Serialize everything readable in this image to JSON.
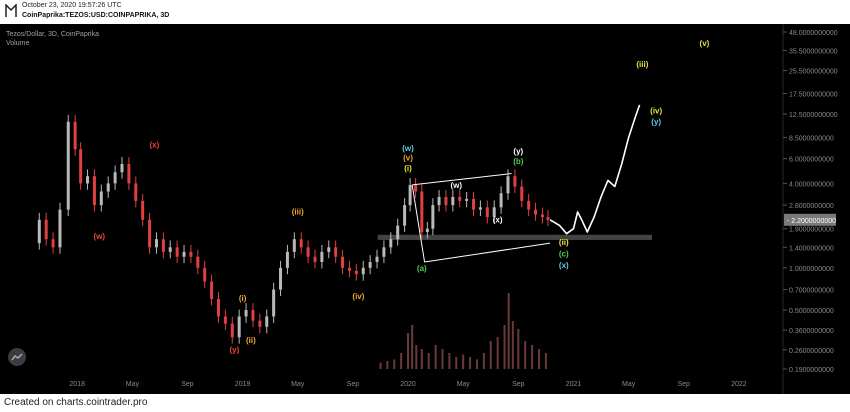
{
  "header": {
    "timestamp": "October 23, 2020 19:57:26 UTC",
    "symbol": "CoinPaprika:TEZOS:USD:COINPAPRIKA, 3D"
  },
  "legend": {
    "title": "Tezos/Dollar, 3D, CoinPaprika",
    "volume": "Volume"
  },
  "footer": {
    "text": "Created on charts.cointrader.pro"
  },
  "colors": {
    "background": "#000000",
    "up": "#b9b9b9",
    "down": "#e04040",
    "volume": "#3a2a2a",
    "axis_text": "#8a8a8a",
    "price_label": "#7a7a7a",
    "projection": "#ffffff",
    "wave_red": "#e8473a",
    "wave_orange": "#f0a830",
    "wave_green": "#4ccf4c",
    "wave_white": "#ffffff",
    "wave_cyan": "#5ac8f0",
    "wave_yellow": "#e8e040"
  },
  "chart_data": {
    "type": "candlestick",
    "scale": "log",
    "y_ticks": [
      "48.0000000000",
      "35.5000000000",
      "25.5000000000",
      "17.5000000000",
      "12.5000000000",
      "8.5000000000",
      "6.0000000000",
      "4.0000000000",
      "2.8000000000",
      "1.9000000000",
      "1.4000000000",
      "1.0000000000",
      "0.7000000000",
      "0.5000000000",
      "0.3600000000",
      "0.2600000000",
      "0.1900000000"
    ],
    "y_tick_values": [
      48,
      35.5,
      25.5,
      17.5,
      12.5,
      8.5,
      6.0,
      4.0,
      2.8,
      1.9,
      1.4,
      1.0,
      0.7,
      0.5,
      0.36,
      0.26,
      0.19
    ],
    "current_price": "2.2000000000",
    "current_price_value": 2.2,
    "x_ticks": [
      {
        "label": "2018",
        "t": 0.0
      },
      {
        "label": "May",
        "t": 4.0
      },
      {
        "label": "Sep",
        "t": 8.0
      },
      {
        "label": "2019",
        "t": 12.0
      },
      {
        "label": "May",
        "t": 16.0
      },
      {
        "label": "Sep",
        "t": 20.0
      },
      {
        "label": "2020",
        "t": 24.0
      },
      {
        "label": "May",
        "t": 28.0
      },
      {
        "label": "Sep",
        "t": 32.0
      },
      {
        "label": "2021",
        "t": 36.0
      },
      {
        "label": "May",
        "t": 40.0
      },
      {
        "label": "Sep",
        "t": 44.0
      },
      {
        "label": "2022",
        "t": 48.0
      }
    ],
    "price_path": [
      [
        -3.0,
        1.5
      ],
      [
        -2.5,
        2.2
      ],
      [
        -2.0,
        1.6
      ],
      [
        -1.5,
        1.4
      ],
      [
        -1.0,
        2.6
      ],
      [
        -0.3,
        11.0
      ],
      [
        0.0,
        7.0
      ],
      [
        0.5,
        4.0
      ],
      [
        1.0,
        4.5
      ],
      [
        1.5,
        2.8
      ],
      [
        2.0,
        3.5
      ],
      [
        2.5,
        4.0
      ],
      [
        3.0,
        4.8
      ],
      [
        3.5,
        5.5
      ],
      [
        4.0,
        4.0
      ],
      [
        4.5,
        3.0
      ],
      [
        5.0,
        2.2
      ],
      [
        5.5,
        1.4
      ],
      [
        6.0,
        1.6
      ],
      [
        6.5,
        1.3
      ],
      [
        7.0,
        1.4
      ],
      [
        7.5,
        1.2
      ],
      [
        8.0,
        1.3
      ],
      [
        8.5,
        1.2
      ],
      [
        9.0,
        1.0
      ],
      [
        9.5,
        0.8
      ],
      [
        10.0,
        0.6
      ],
      [
        10.5,
        0.45
      ],
      [
        11.0,
        0.4
      ],
      [
        11.5,
        0.32
      ],
      [
        12.0,
        0.45
      ],
      [
        12.5,
        0.5
      ],
      [
        13.0,
        0.42
      ],
      [
        13.5,
        0.38
      ],
      [
        14.0,
        0.45
      ],
      [
        14.5,
        0.7
      ],
      [
        15.0,
        1.0
      ],
      [
        15.5,
        1.3
      ],
      [
        16.0,
        1.6
      ],
      [
        16.5,
        1.4
      ],
      [
        17.0,
        1.2
      ],
      [
        17.5,
        1.1
      ],
      [
        18.0,
        1.3
      ],
      [
        18.5,
        1.4
      ],
      [
        19.0,
        1.2
      ],
      [
        19.5,
        1.0
      ],
      [
        20.0,
        0.95
      ],
      [
        20.5,
        0.9
      ],
      [
        21.0,
        1.0
      ],
      [
        21.5,
        1.1
      ],
      [
        22.0,
        1.2
      ],
      [
        22.5,
        1.4
      ],
      [
        23.0,
        1.6
      ],
      [
        23.5,
        2.0
      ],
      [
        24.0,
        2.8
      ],
      [
        24.3,
        3.9
      ],
      [
        24.8,
        3.5
      ],
      [
        25.2,
        1.8
      ],
      [
        25.6,
        1.9
      ],
      [
        26.0,
        2.8
      ],
      [
        26.5,
        3.2
      ],
      [
        27.0,
        2.8
      ],
      [
        27.5,
        3.2
      ],
      [
        28.0,
        3.0
      ],
      [
        28.5,
        3.1
      ],
      [
        29.0,
        2.6
      ],
      [
        29.5,
        2.7
      ],
      [
        30.0,
        2.3
      ],
      [
        30.5,
        2.7
      ],
      [
        31.0,
        3.4
      ],
      [
        31.5,
        4.5
      ],
      [
        32.0,
        3.8
      ],
      [
        32.5,
        3.0
      ],
      [
        33.0,
        2.6
      ],
      [
        33.5,
        2.4
      ],
      [
        34.0,
        2.3
      ],
      [
        34.3,
        2.2
      ]
    ],
    "projection_path": [
      [
        34.3,
        2.2
      ],
      [
        35.0,
        2.0
      ],
      [
        35.5,
        1.75
      ],
      [
        36.0,
        1.9
      ],
      [
        36.3,
        2.5
      ],
      [
        36.6,
        2.2
      ],
      [
        37.0,
        1.8
      ],
      [
        37.5,
        2.3
      ],
      [
        38.0,
        3.2
      ],
      [
        38.5,
        4.2
      ],
      [
        39.0,
        3.8
      ],
      [
        39.5,
        5.5
      ],
      [
        40.0,
        8.5
      ],
      [
        40.5,
        12.0
      ],
      [
        40.8,
        14.5
      ]
    ],
    "triangle": {
      "upper": [
        [
          24.3,
          3.9
        ],
        [
          31.5,
          4.7
        ]
      ],
      "lower": [
        [
          25.2,
          1.1
        ],
        [
          34.3,
          1.5
        ]
      ]
    },
    "support_zone": [
      1.58,
      1.72
    ],
    "wave_labels": [
      {
        "text": "(w)",
        "t": 1.6,
        "v": 1.6,
        "color": "wave_red"
      },
      {
        "text": "(x)",
        "t": 5.6,
        "v": 7.2,
        "color": "wave_red"
      },
      {
        "text": "(y)",
        "t": 11.4,
        "v": 0.25,
        "color": "wave_red"
      },
      {
        "text": "(i)",
        "t": 12.0,
        "v": 0.58,
        "color": "wave_orange"
      },
      {
        "text": "(ii)",
        "t": 12.6,
        "v": 0.29,
        "color": "wave_orange"
      },
      {
        "text": "(iii)",
        "t": 16.0,
        "v": 2.4,
        "color": "wave_orange"
      },
      {
        "text": "(iv)",
        "t": 20.4,
        "v": 0.6,
        "color": "wave_orange"
      },
      {
        "text": "(w)",
        "t": 24.0,
        "v": 6.8,
        "color": "wave_cyan"
      },
      {
        "text": "(v)",
        "t": 24.0,
        "v": 5.8,
        "color": "wave_orange"
      },
      {
        "text": "(i)",
        "t": 24.0,
        "v": 4.9,
        "color": "wave_yellow"
      },
      {
        "text": "(a)",
        "t": 25.0,
        "v": 0.95,
        "color": "wave_green"
      },
      {
        "text": "(w)",
        "t": 27.5,
        "v": 3.7,
        "color": "wave_white"
      },
      {
        "text": "(x)",
        "t": 30.5,
        "v": 2.1,
        "color": "wave_white"
      },
      {
        "text": "(y)",
        "t": 32.0,
        "v": 6.5,
        "color": "wave_white"
      },
      {
        "text": "(b)",
        "t": 32.0,
        "v": 5.5,
        "color": "wave_green"
      },
      {
        "text": "(ii)",
        "t": 35.3,
        "v": 1.45,
        "color": "wave_yellow"
      },
      {
        "text": "(c)",
        "t": 35.3,
        "v": 1.2,
        "color": "wave_green"
      },
      {
        "text": "(x)",
        "t": 35.3,
        "v": 1.0,
        "color": "wave_cyan"
      },
      {
        "text": "(iii)",
        "t": 41.0,
        "v": 27.0,
        "color": "wave_yellow"
      },
      {
        "text": "(iv)",
        "t": 42.0,
        "v": 12.6,
        "color": "wave_yellow"
      },
      {
        "text": "(y)",
        "t": 42.0,
        "v": 10.5,
        "color": "wave_cyan"
      },
      {
        "text": "(v)",
        "t": 45.5,
        "v": 38.0,
        "color": "wave_yellow"
      }
    ],
    "volume_bars": [
      [
        22.0,
        0.08
      ],
      [
        22.5,
        0.1
      ],
      [
        23.0,
        0.12
      ],
      [
        23.5,
        0.2
      ],
      [
        24.0,
        0.45
      ],
      [
        24.3,
        0.55
      ],
      [
        24.6,
        0.3
      ],
      [
        25.0,
        0.25
      ],
      [
        25.5,
        0.2
      ],
      [
        26.0,
        0.3
      ],
      [
        26.5,
        0.25
      ],
      [
        27.0,
        0.2
      ],
      [
        27.5,
        0.15
      ],
      [
        28.0,
        0.18
      ],
      [
        28.5,
        0.15
      ],
      [
        29.0,
        0.12
      ],
      [
        29.5,
        0.2
      ],
      [
        30.0,
        0.35
      ],
      [
        30.5,
        0.4
      ],
      [
        31.0,
        0.55
      ],
      [
        31.3,
        0.95
      ],
      [
        31.6,
        0.6
      ],
      [
        32.0,
        0.5
      ],
      [
        32.5,
        0.35
      ],
      [
        33.0,
        0.3
      ],
      [
        33.5,
        0.25
      ],
      [
        34.0,
        0.2
      ]
    ]
  }
}
